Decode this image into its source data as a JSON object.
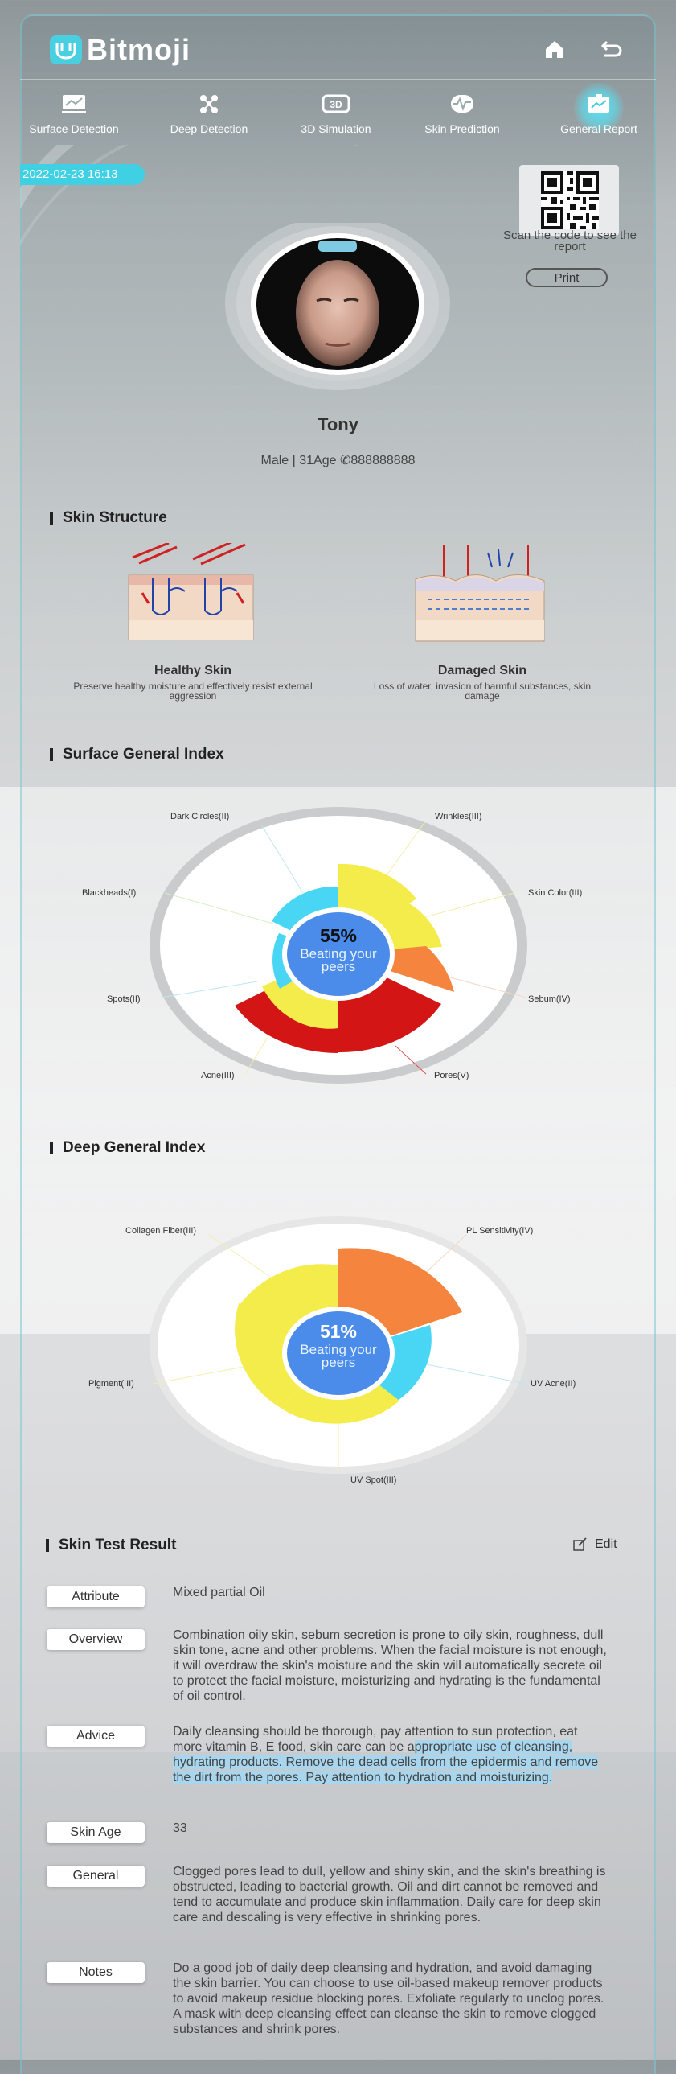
{
  "app": {
    "brand": "Bitmoji",
    "accent": "#3fd0e4"
  },
  "header": {
    "home_icon": "home-icon",
    "back_icon": "back-icon"
  },
  "nav": {
    "items": [
      {
        "label": "Surface Detection",
        "icon": "chart-icon"
      },
      {
        "label": "Deep Detection",
        "icon": "molecule-icon"
      },
      {
        "label": "3D Simulation",
        "icon": "3d-icon"
      },
      {
        "label": "Skin Prediction",
        "icon": "pulse-icon"
      },
      {
        "label": "General Report",
        "icon": "report-icon",
        "active": true
      }
    ]
  },
  "report": {
    "datetime": "2022-02-23 16:13",
    "qr_caption": "Scan the code to see the report",
    "print_label": "Print",
    "name": "Tony",
    "meta": "Male | 31Age",
    "phone": "888888888"
  },
  "skin_structure": {
    "title": "Skin Structure",
    "healthy": {
      "title": "Healthy Skin",
      "desc": "Preserve healthy moisture and effectively resist external aggression"
    },
    "damaged": {
      "title": "Damaged Skin",
      "desc": "Loss of water, invasion of harmful substances, skin damage"
    }
  },
  "surface_index": {
    "title": "Surface General Index",
    "center_value": "55%",
    "center_caption": "Beating your peers",
    "labels": {
      "dark_circles": "Dark Circles(II)",
      "wrinkles": "Wrinkles(III)",
      "blackheads": "Blackheads(I)",
      "skin_color": "Skin Color(III)",
      "spots": "Spots(II)",
      "sebum": "Sebum(IV)",
      "acne": "Acne(III)",
      "pores": "Pores(V)"
    }
  },
  "deep_index": {
    "title": "Deep General Index",
    "center_value": "51%",
    "center_caption": "Beating your peers",
    "labels": {
      "collagen": "Collagen Fiber(III)",
      "pl": "PL Sensitivity(IV)",
      "pigment": "Pigment(III)",
      "uv_acne": "UV Acne(II)",
      "uv_spot": "UV Spot(III)"
    }
  },
  "result": {
    "title": "Skin Test Result",
    "edit_label": "Edit",
    "attribute_label": "Attribute",
    "attribute_value": "Mixed partial Oil",
    "overview_label": "Overview",
    "overview_value": "Combination oily skin, sebum secretion is prone to oily skin, roughness, dull skin tone, acne and other problems. When the facial moisture is not enough, it will overdraw the skin's moisture and the skin will automatically secrete oil to protect the facial moisture, moisturizing and hydrating is the fundamental of oil control.",
    "advice_label": "Advice",
    "advice_value_plain": "Daily cleansing should be thorough, pay attention to sun protection, eat more vitamin B, E food, skin care can be a",
    "advice_value_highlight": "ppropriate use of cleansing, hydrating products. Remove the dead cells from the epidermis and remove the dirt from the pores. Pay attention to hydration and moisturizing.",
    "skin_age_label": "Skin Age",
    "skin_age_value": "33",
    "general_label": "General",
    "general_value": "Clogged pores lead to dull, yellow and shiny skin, and the skin's breathing is obstructed, leading to bacterial growth. Oil and dirt cannot be removed and tend to accumulate and produce skin inflammation. Daily care for deep skin care and descaling is very effective in shrinking pores.",
    "notes_label": "Notes",
    "notes_value": "Do a good job of daily deep cleansing and hydration, and avoid damaging the skin barrier. You can choose to use oil-based makeup remover products to avoid makeup residue blocking pores. Exfoliate regularly to unclog pores. A mask with deep cleansing effect can cleanse the skin to remove clogged substances and shrink pores."
  }
}
